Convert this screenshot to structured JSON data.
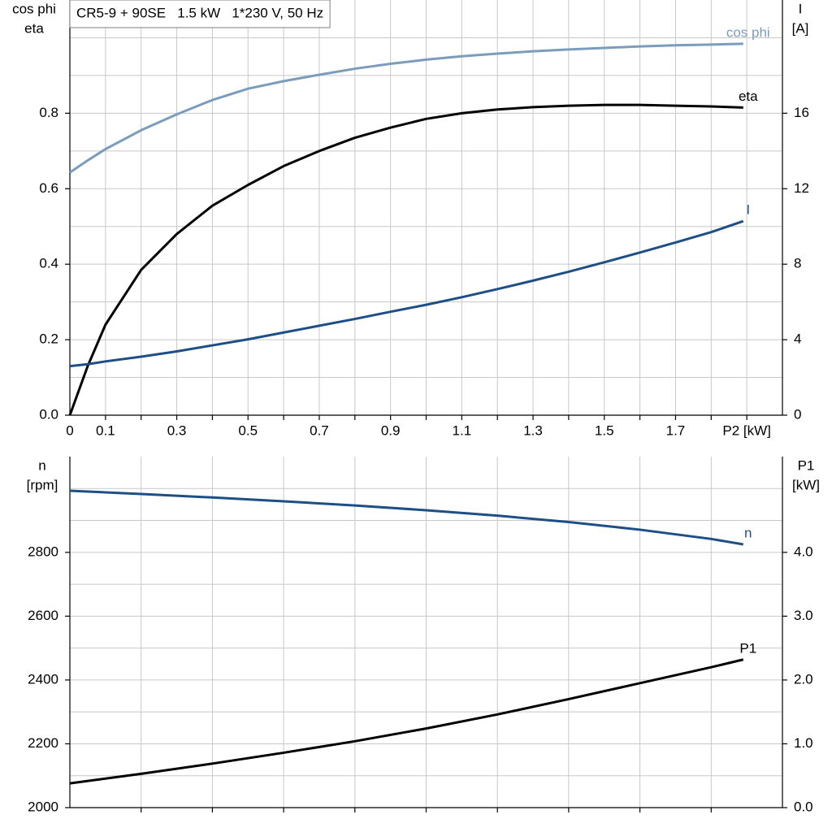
{
  "chart_data": [
    {
      "type": "line",
      "title": "CR5-9 + 90SE   1.5 kW   1*230 V, 50 Hz",
      "y_label": [
        "cos phi",
        "eta"
      ],
      "y2_label": [
        "I",
        "[A]"
      ],
      "x": [
        0,
        0.05,
        0.1,
        0.2,
        0.3,
        0.4,
        0.5,
        0.6,
        0.7,
        0.8,
        0.9,
        1.0,
        1.1,
        1.2,
        1.3,
        1.4,
        1.5,
        1.6,
        1.7,
        1.8,
        1.89
      ],
      "xlim": [
        0,
        2.0
      ],
      "xticks": [
        0,
        0.1,
        0.3,
        0.5,
        0.7,
        0.9,
        1.1,
        1.3,
        1.5,
        1.7,
        {
          "value": 1.9,
          "label": "P2 [kW]"
        }
      ],
      "xgrid": [
        0.1,
        0.2,
        0.3,
        0.4,
        0.5,
        0.6,
        0.7,
        0.8,
        0.9,
        1.0,
        1.1,
        1.2,
        1.3,
        1.4,
        1.5,
        1.6,
        1.7,
        1.8,
        1.9
      ],
      "ylim": [
        0,
        1.1
      ],
      "yticks": [
        {
          "value": 0,
          "label": "0.0"
        },
        0.2,
        0.4,
        0.6,
        0.8
      ],
      "ygrid": [
        0.1,
        0.2,
        0.3,
        0.4,
        0.5,
        0.6,
        0.7,
        0.8,
        0.9,
        1.0
      ],
      "y2lim": [
        0,
        22
      ],
      "y2ticks": [
        0,
        4,
        8,
        12,
        16
      ],
      "grid": true,
      "series": [
        {
          "name": "cos phi",
          "color": "#7b9cbd",
          "values": [
            0.643,
            0.675,
            0.705,
            0.755,
            0.797,
            0.835,
            0.865,
            0.885,
            0.902,
            0.918,
            0.931,
            0.942,
            0.951,
            0.958,
            0.964,
            0.969,
            0.973,
            0.977,
            0.98,
            0.982,
            0.984
          ]
        },
        {
          "name": "eta",
          "color": "#000000",
          "values": [
            0,
            0.13,
            0.24,
            0.385,
            0.48,
            0.555,
            0.61,
            0.66,
            0.7,
            0.735,
            0.762,
            0.785,
            0.8,
            0.81,
            0.816,
            0.82,
            0.822,
            0.822,
            0.82,
            0.818,
            0.815
          ]
        },
        {
          "name": "I",
          "color": "#1d4f86",
          "axis": "y2",
          "values": [
            2.6,
            2.7,
            2.85,
            3.1,
            3.38,
            3.7,
            4.02,
            4.38,
            4.74,
            5.1,
            5.48,
            5.85,
            6.25,
            6.68,
            7.13,
            7.6,
            8.1,
            8.62,
            9.15,
            9.7,
            10.28
          ]
        }
      ]
    },
    {
      "type": "line",
      "y_label": [
        "n",
        "[rpm]"
      ],
      "y2_label": [
        "P1",
        "[kW]"
      ],
      "x": [
        0,
        0.2,
        0.4,
        0.6,
        0.8,
        1.0,
        1.2,
        1.4,
        1.6,
        1.8,
        1.89
      ],
      "xlim": [
        0,
        2.0
      ],
      "xgrid": [
        0.2,
        0.4,
        0.6,
        0.8,
        1.0,
        1.2,
        1.4,
        1.6,
        1.8
      ],
      "ylim": [
        2000,
        3100
      ],
      "yticks": [
        2000,
        2200,
        2400,
        2600,
        2800
      ],
      "ygrid": [
        2100,
        2200,
        2300,
        2400,
        2500,
        2600,
        2700,
        2800,
        2900,
        3000
      ],
      "y2lim": [
        0,
        5.5
      ],
      "y2ticks": [
        {
          "value": 0,
          "label": "0.0"
        },
        {
          "value": 1,
          "label": "1.0"
        },
        {
          "value": 2,
          "label": "2.0"
        },
        {
          "value": 3,
          "label": "3.0"
        },
        {
          "value": 4,
          "label": "4.0"
        }
      ],
      "grid": true,
      "series": [
        {
          "name": "n",
          "color": "#1d4f86",
          "values": [
            2993,
            2983,
            2972,
            2960,
            2947,
            2932,
            2915,
            2895,
            2871,
            2842,
            2825
          ]
        },
        {
          "name": "P1",
          "color": "#000000",
          "axis": "y2",
          "values": [
            0.38,
            0.53,
            0.69,
            0.86,
            1.04,
            1.24,
            1.46,
            1.7,
            1.95,
            2.2,
            2.32
          ]
        }
      ]
    }
  ]
}
